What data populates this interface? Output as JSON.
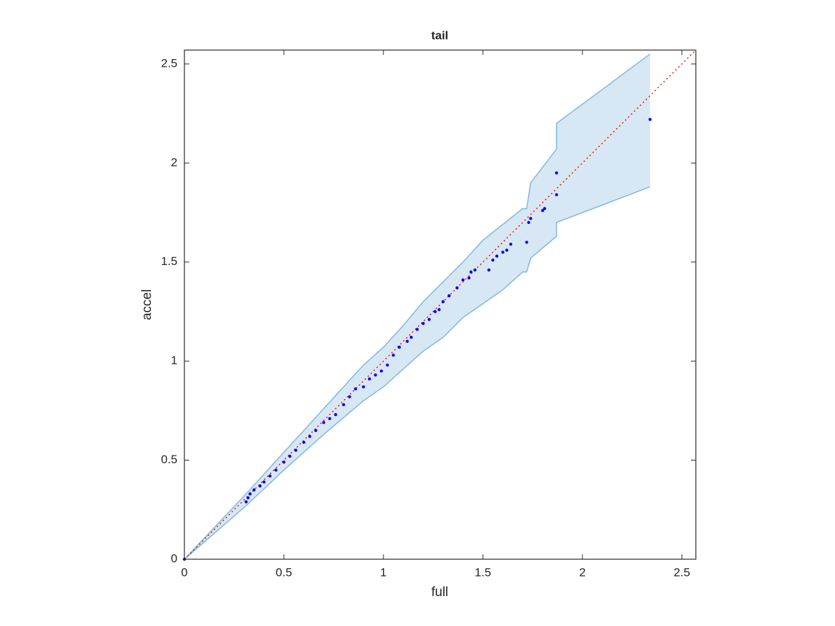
{
  "chart_data": {
    "type": "scatter",
    "title": "tail",
    "x_label": "full",
    "y_label": "accel",
    "x": [
      0,
      0.31,
      0.32,
      0.33,
      0.35,
      0.38,
      0.4,
      0.43,
      0.46,
      0.5,
      0.53,
      0.56,
      0.6,
      0.63,
      0.66,
      0.7,
      0.73,
      0.76,
      0.8,
      0.83,
      0.86,
      0.9,
      0.93,
      0.96,
      0.99,
      1.02,
      1.05,
      1.08,
      1.12,
      1.14,
      1.17,
      1.2,
      1.23,
      1.26,
      1.28,
      1.3,
      1.33,
      1.37,
      1.4,
      1.43,
      1.44,
      1.46,
      1.53,
      1.55,
      1.57,
      1.6,
      1.62,
      1.64,
      1.72,
      1.73,
      1.74,
      1.8,
      1.81,
      1.87,
      1.87,
      2.34
    ],
    "values": [
      0,
      0.29,
      0.31,
      0.33,
      0.35,
      0.37,
      0.39,
      0.42,
      0.45,
      0.49,
      0.52,
      0.55,
      0.59,
      0.62,
      0.65,
      0.69,
      0.71,
      0.73,
      0.78,
      0.82,
      0.86,
      0.87,
      0.91,
      0.93,
      0.95,
      0.98,
      1.03,
      1.07,
      1.1,
      1.12,
      1.16,
      1.19,
      1.21,
      1.25,
      1.26,
      1.3,
      1.33,
      1.37,
      1.41,
      1.42,
      1.45,
      1.46,
      1.46,
      1.51,
      1.53,
      1.55,
      1.56,
      1.59,
      1.6,
      1.7,
      1.72,
      1.76,
      1.77,
      1.84,
      1.95,
      2.22
    ],
    "color": "#0000ff",
    "band": {
      "x": [
        0,
        0.31,
        0.5,
        0.7,
        0.9,
        1.0,
        1.1,
        1.2,
        1.3,
        1.4,
        1.5,
        1.6,
        1.7,
        1.72,
        1.74,
        1.87,
        1.87,
        2.34
      ],
      "upper": [
        0,
        0.33,
        0.54,
        0.76,
        0.98,
        1.07,
        1.18,
        1.3,
        1.4,
        1.5,
        1.61,
        1.69,
        1.77,
        1.77,
        1.9,
        2.07,
        2.2,
        2.55
      ],
      "lower": [
        0,
        0.27,
        0.45,
        0.63,
        0.8,
        0.87,
        0.96,
        1.05,
        1.12,
        1.22,
        1.29,
        1.36,
        1.45,
        1.45,
        1.52,
        1.63,
        1.7,
        1.88
      ],
      "fill": "#d7e7f4",
      "edge": "#7fb8dc"
    },
    "reference_line_color": "#ff0000",
    "xlim": [
      0,
      2.57
    ],
    "ylim": [
      0,
      2.57
    ],
    "xticks": [
      0,
      0.5,
      1,
      1.5,
      2,
      2.5
    ],
    "yticks": [
      0,
      0.5,
      1,
      1.5,
      2,
      2.5
    ]
  }
}
